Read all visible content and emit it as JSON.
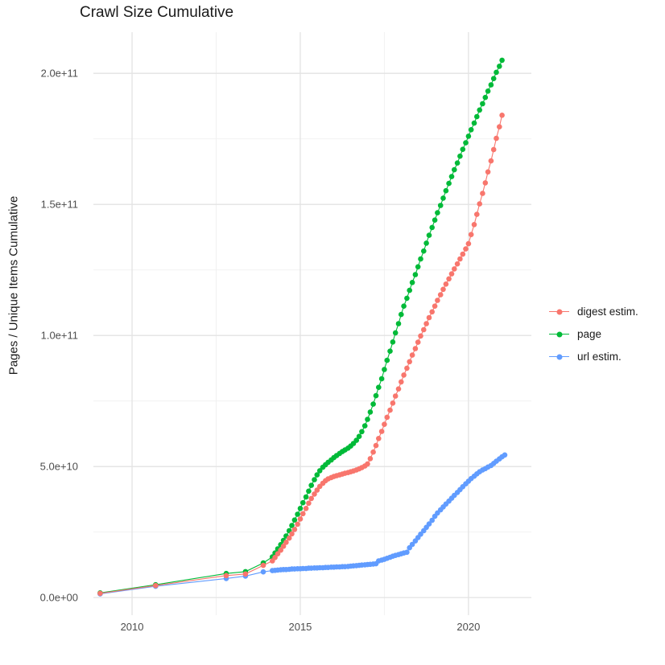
{
  "title": "Crawl Size Cumulative",
  "y_axis": {
    "label": "Pages / Unique Items Cumulative",
    "ticks": [
      "0.0e+00",
      "5.0e+10",
      "1.0e+11",
      "1.5e+11",
      "2.0e+11"
    ],
    "tick_values_e9": [
      0,
      50,
      100,
      150,
      200
    ],
    "minor_values_e9": [
      25,
      75,
      125,
      175
    ]
  },
  "x_axis": {
    "ticks": [
      "2010",
      "2015",
      "2020"
    ],
    "tick_values": [
      2010,
      2015,
      2020
    ],
    "minor_values": [
      2012.5,
      2017.5
    ]
  },
  "legend": {
    "items": [
      {
        "id": "digest-estim",
        "label": "digest estim.",
        "color": "#F8766D"
      },
      {
        "id": "page",
        "label": "page",
        "color": "#00BA38"
      },
      {
        "id": "url-estim",
        "label": "url estim.",
        "color": "#619CFF"
      }
    ]
  },
  "chart_data": {
    "type": "scatter",
    "title": "Crawl Size Cumulative",
    "xlabel": "",
    "ylabel": "Pages / Unique Items Cumulative",
    "xlim": [
      2008.85,
      2021.87
    ],
    "ylim_e9": [
      -6.7,
      215.7
    ],
    "grid": true,
    "legend_position": "right",
    "value_unit": "1e9 items",
    "series": [
      {
        "id": "digest-estim",
        "name": "digest estim.",
        "color": "#F8766D",
        "points": [
          [
            2009.05,
            1.6
          ],
          [
            2010.7,
            4.6
          ],
          [
            2012.8,
            8.4
          ],
          [
            2013.37,
            9.0
          ],
          [
            2013.9,
            12.3
          ],
          [
            2014.17,
            14.0
          ],
          [
            2014.25,
            15.3
          ],
          [
            2014.33,
            16.7
          ],
          [
            2014.42,
            18.1
          ],
          [
            2014.5,
            19.6
          ],
          [
            2014.58,
            21.1
          ],
          [
            2014.67,
            22.7
          ],
          [
            2014.75,
            24.3
          ],
          [
            2014.83,
            26.0
          ],
          [
            2014.92,
            28.0
          ],
          [
            2015.0,
            30.0
          ],
          [
            2015.08,
            32.0
          ],
          [
            2015.17,
            34.0
          ],
          [
            2015.25,
            36.0
          ],
          [
            2015.33,
            37.8
          ],
          [
            2015.42,
            39.5
          ],
          [
            2015.5,
            41.0
          ],
          [
            2015.58,
            42.4
          ],
          [
            2015.67,
            43.6
          ],
          [
            2015.75,
            44.6
          ],
          [
            2015.83,
            45.3
          ],
          [
            2015.92,
            45.8
          ],
          [
            2016.0,
            46.2
          ],
          [
            2016.08,
            46.5
          ],
          [
            2016.17,
            46.8
          ],
          [
            2016.25,
            47.1
          ],
          [
            2016.33,
            47.4
          ],
          [
            2016.42,
            47.7
          ],
          [
            2016.5,
            48.0
          ],
          [
            2016.58,
            48.3
          ],
          [
            2016.67,
            48.7
          ],
          [
            2016.75,
            49.1
          ],
          [
            2016.83,
            49.6
          ],
          [
            2016.92,
            50.2
          ],
          [
            2017.0,
            51.0
          ],
          [
            2017.08,
            53.0
          ],
          [
            2017.17,
            55.5
          ],
          [
            2017.25,
            58.0
          ],
          [
            2017.33,
            60.7
          ],
          [
            2017.42,
            63.4
          ],
          [
            2017.5,
            66.1
          ],
          [
            2017.58,
            68.8
          ],
          [
            2017.67,
            71.5
          ],
          [
            2017.75,
            74.2
          ],
          [
            2017.83,
            76.9
          ],
          [
            2017.92,
            79.6
          ],
          [
            2018.0,
            82.3
          ],
          [
            2018.08,
            84.9
          ],
          [
            2018.17,
            87.5
          ],
          [
            2018.25,
            90.0
          ],
          [
            2018.33,
            92.5
          ],
          [
            2018.42,
            95.0
          ],
          [
            2018.5,
            97.4
          ],
          [
            2018.58,
            99.8
          ],
          [
            2018.67,
            102.2
          ],
          [
            2018.75,
            104.5
          ],
          [
            2018.83,
            106.8
          ],
          [
            2018.92,
            109.0
          ],
          [
            2019.0,
            111.2
          ],
          [
            2019.08,
            113.4
          ],
          [
            2019.17,
            115.5
          ],
          [
            2019.25,
            117.6
          ],
          [
            2019.33,
            119.6
          ],
          [
            2019.42,
            121.6
          ],
          [
            2019.5,
            123.5
          ],
          [
            2019.58,
            125.4
          ],
          [
            2019.67,
            127.3
          ],
          [
            2019.75,
            129.2
          ],
          [
            2019.83,
            131.0
          ],
          [
            2019.92,
            133.0
          ],
          [
            2020.0,
            135.0
          ],
          [
            2020.08,
            138.5
          ],
          [
            2020.17,
            142.3
          ],
          [
            2020.25,
            146.2
          ],
          [
            2020.33,
            150.2
          ],
          [
            2020.42,
            154.2
          ],
          [
            2020.5,
            158.2
          ],
          [
            2020.58,
            162.4
          ],
          [
            2020.67,
            166.6
          ],
          [
            2020.75,
            170.9
          ],
          [
            2020.83,
            175.2
          ],
          [
            2020.92,
            179.6
          ],
          [
            2021.0,
            184.0
          ]
        ]
      },
      {
        "id": "page",
        "name": "page",
        "color": "#00BA38",
        "points": [
          [
            2009.05,
            1.8
          ],
          [
            2010.7,
            4.9
          ],
          [
            2012.8,
            9.2
          ],
          [
            2013.37,
            9.9
          ],
          [
            2013.9,
            13.2
          ],
          [
            2014.17,
            15.5
          ],
          [
            2014.25,
            17.0
          ],
          [
            2014.33,
            18.6
          ],
          [
            2014.42,
            20.2
          ],
          [
            2014.5,
            21.8
          ],
          [
            2014.58,
            23.5
          ],
          [
            2014.67,
            25.5
          ],
          [
            2014.75,
            27.5
          ],
          [
            2014.83,
            29.6
          ],
          [
            2014.92,
            31.8
          ],
          [
            2015.0,
            34.0
          ],
          [
            2015.08,
            36.2
          ],
          [
            2015.17,
            38.4
          ],
          [
            2015.25,
            40.6
          ],
          [
            2015.33,
            42.8
          ],
          [
            2015.42,
            45.0
          ],
          [
            2015.5,
            46.8
          ],
          [
            2015.58,
            48.4
          ],
          [
            2015.67,
            49.7
          ],
          [
            2015.75,
            50.7
          ],
          [
            2015.83,
            51.6
          ],
          [
            2015.92,
            52.5
          ],
          [
            2016.0,
            53.4
          ],
          [
            2016.08,
            54.2
          ],
          [
            2016.17,
            55.0
          ],
          [
            2016.25,
            55.7
          ],
          [
            2016.33,
            56.3
          ],
          [
            2016.42,
            57.0
          ],
          [
            2016.5,
            57.8
          ],
          [
            2016.58,
            58.8
          ],
          [
            2016.67,
            60.0
          ],
          [
            2016.75,
            61.5
          ],
          [
            2016.83,
            63.3
          ],
          [
            2016.92,
            65.5
          ],
          [
            2017.0,
            68.0
          ],
          [
            2017.08,
            70.8
          ],
          [
            2017.17,
            73.8
          ],
          [
            2017.25,
            77.0
          ],
          [
            2017.33,
            80.2
          ],
          [
            2017.42,
            83.5
          ],
          [
            2017.5,
            87.0
          ],
          [
            2017.58,
            90.5
          ],
          [
            2017.67,
            94.0
          ],
          [
            2017.75,
            97.5
          ],
          [
            2017.83,
            101.0
          ],
          [
            2017.92,
            104.5
          ],
          [
            2018.0,
            108.0
          ],
          [
            2018.08,
            111.2
          ],
          [
            2018.17,
            114.2
          ],
          [
            2018.25,
            117.2
          ],
          [
            2018.33,
            120.2
          ],
          [
            2018.42,
            123.2
          ],
          [
            2018.5,
            126.2
          ],
          [
            2018.58,
            129.2
          ],
          [
            2018.67,
            132.2
          ],
          [
            2018.75,
            135.2
          ],
          [
            2018.83,
            138.2
          ],
          [
            2018.92,
            141.2
          ],
          [
            2019.0,
            144.0
          ],
          [
            2019.08,
            146.8
          ],
          [
            2019.17,
            149.6
          ],
          [
            2019.25,
            152.4
          ],
          [
            2019.33,
            155.2
          ],
          [
            2019.42,
            158.0
          ],
          [
            2019.5,
            160.6
          ],
          [
            2019.58,
            163.2
          ],
          [
            2019.67,
            165.8
          ],
          [
            2019.75,
            168.4
          ],
          [
            2019.83,
            171.0
          ],
          [
            2019.92,
            173.5
          ],
          [
            2020.0,
            176.0
          ],
          [
            2020.08,
            178.5
          ],
          [
            2020.17,
            181.0
          ],
          [
            2020.25,
            183.5
          ],
          [
            2020.33,
            186.0
          ],
          [
            2020.42,
            188.4
          ],
          [
            2020.5,
            190.8
          ],
          [
            2020.58,
            193.2
          ],
          [
            2020.67,
            195.6
          ],
          [
            2020.75,
            198.0
          ],
          [
            2020.83,
            200.4
          ],
          [
            2020.92,
            202.7
          ],
          [
            2021.0,
            205.0
          ]
        ]
      },
      {
        "id": "url-estim",
        "name": "url estim.",
        "color": "#619CFF",
        "points": [
          [
            2009.05,
            1.4
          ],
          [
            2010.7,
            4.3
          ],
          [
            2012.8,
            7.3
          ],
          [
            2013.37,
            8.2
          ],
          [
            2013.9,
            9.8
          ],
          [
            2014.17,
            10.3
          ],
          [
            2014.25,
            10.4
          ],
          [
            2014.33,
            10.5
          ],
          [
            2014.42,
            10.6
          ],
          [
            2014.5,
            10.7
          ],
          [
            2014.58,
            10.7
          ],
          [
            2014.67,
            10.8
          ],
          [
            2014.75,
            10.9
          ],
          [
            2014.83,
            10.9
          ],
          [
            2014.92,
            11.0
          ],
          [
            2015.0,
            11.0
          ],
          [
            2015.08,
            11.1
          ],
          [
            2015.17,
            11.1
          ],
          [
            2015.25,
            11.2
          ],
          [
            2015.33,
            11.2
          ],
          [
            2015.42,
            11.3
          ],
          [
            2015.5,
            11.3
          ],
          [
            2015.58,
            11.4
          ],
          [
            2015.67,
            11.4
          ],
          [
            2015.75,
            11.5
          ],
          [
            2015.83,
            11.5
          ],
          [
            2015.92,
            11.6
          ],
          [
            2016.0,
            11.6
          ],
          [
            2016.08,
            11.7
          ],
          [
            2016.17,
            11.7
          ],
          [
            2016.25,
            11.8
          ],
          [
            2016.33,
            11.8
          ],
          [
            2016.42,
            11.9
          ],
          [
            2016.5,
            12.0
          ],
          [
            2016.58,
            12.1
          ],
          [
            2016.67,
            12.2
          ],
          [
            2016.75,
            12.3
          ],
          [
            2016.83,
            12.4
          ],
          [
            2016.92,
            12.5
          ],
          [
            2017.0,
            12.6
          ],
          [
            2017.08,
            12.7
          ],
          [
            2017.17,
            12.8
          ],
          [
            2017.25,
            12.9
          ],
          [
            2017.33,
            14.0
          ],
          [
            2017.42,
            14.3
          ],
          [
            2017.5,
            14.6
          ],
          [
            2017.58,
            15.0
          ],
          [
            2017.67,
            15.4
          ],
          [
            2017.75,
            15.8
          ],
          [
            2017.83,
            16.1
          ],
          [
            2017.92,
            16.4
          ],
          [
            2018.0,
            16.7
          ],
          [
            2018.08,
            17.0
          ],
          [
            2018.17,
            17.3
          ],
          [
            2018.25,
            19.0
          ],
          [
            2018.33,
            20.3
          ],
          [
            2018.42,
            21.6
          ],
          [
            2018.5,
            22.9
          ],
          [
            2018.58,
            24.2
          ],
          [
            2018.67,
            25.5
          ],
          [
            2018.75,
            26.8
          ],
          [
            2018.83,
            28.1
          ],
          [
            2018.92,
            29.5
          ],
          [
            2019.0,
            31.0
          ],
          [
            2019.08,
            32.3
          ],
          [
            2019.17,
            33.5
          ],
          [
            2019.25,
            34.6
          ],
          [
            2019.33,
            35.7
          ],
          [
            2019.42,
            36.8
          ],
          [
            2019.5,
            37.9
          ],
          [
            2019.58,
            39.0
          ],
          [
            2019.67,
            40.1
          ],
          [
            2019.75,
            41.2
          ],
          [
            2019.83,
            42.3
          ],
          [
            2019.92,
            43.4
          ],
          [
            2020.0,
            44.4
          ],
          [
            2020.08,
            45.4
          ],
          [
            2020.17,
            46.3
          ],
          [
            2020.25,
            47.2
          ],
          [
            2020.33,
            48.0
          ],
          [
            2020.42,
            48.7
          ],
          [
            2020.5,
            49.2
          ],
          [
            2020.58,
            49.8
          ],
          [
            2020.67,
            50.4
          ],
          [
            2020.75,
            51.2
          ],
          [
            2020.83,
            52.0
          ],
          [
            2020.92,
            52.9
          ],
          [
            2021.0,
            53.7
          ],
          [
            2021.08,
            54.4
          ]
        ]
      }
    ]
  }
}
